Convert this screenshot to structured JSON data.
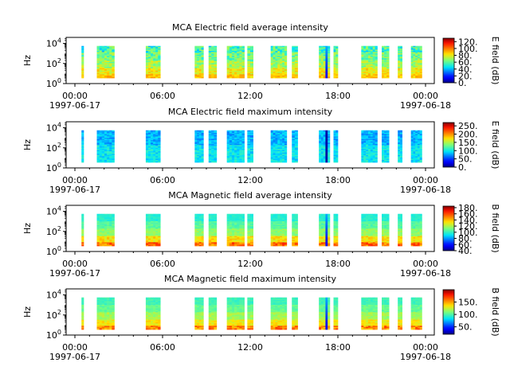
{
  "chart_data": [
    {
      "type": "heatmap",
      "title": "MCA  Electric field average intensity",
      "ylabel": "Hz",
      "colorbar_label": "E field (dB)",
      "colorbar_ticks": [
        "120.",
        "100.",
        "80.",
        "60.",
        "40.",
        "20.",
        "0."
      ],
      "colorbar_range": [
        0,
        130
      ],
      "y_ticks": [
        {
          "base": "10",
          "exp": "0"
        },
        {
          "base": "10",
          "exp": "2"
        },
        {
          "base": "10",
          "exp": "4"
        }
      ],
      "y_range_log10": [
        0,
        4.6
      ],
      "profile": "e_avg"
    },
    {
      "type": "heatmap",
      "title": "MCA  Electric field maximum intensity",
      "ylabel": "Hz",
      "colorbar_label": "E field (dB)",
      "colorbar_ticks": [
        "250.",
        "200.",
        "150.",
        "100.",
        "50.",
        "0."
      ],
      "colorbar_range": [
        0,
        270
      ],
      "y_ticks": [
        {
          "base": "10",
          "exp": "0"
        },
        {
          "base": "10",
          "exp": "2"
        },
        {
          "base": "10",
          "exp": "4"
        }
      ],
      "y_range_log10": [
        0,
        4.6
      ],
      "profile": "e_max"
    },
    {
      "type": "heatmap",
      "title": "MCA  Magnetic field average intensity",
      "ylabel": "Hz",
      "colorbar_label": "B field (dB)",
      "colorbar_ticks": [
        "180.",
        "160.",
        "140.",
        "120.",
        "100.",
        "80.",
        "60.",
        "40."
      ],
      "colorbar_range": [
        40,
        185
      ],
      "y_ticks": [
        {
          "base": "10",
          "exp": "0"
        },
        {
          "base": "10",
          "exp": "2"
        },
        {
          "base": "10",
          "exp": "4"
        }
      ],
      "y_range_log10": [
        0,
        4.6
      ],
      "profile": "b_avg"
    },
    {
      "type": "heatmap",
      "title": "MCA  Magnetic field maximum intensity",
      "ylabel": "Hz",
      "colorbar_label": "B field (dB)",
      "colorbar_ticks": [
        "150.",
        "100.",
        "50."
      ],
      "colorbar_range": [
        20,
        200
      ],
      "y_ticks": [
        {
          "base": "10",
          "exp": "0"
        },
        {
          "base": "10",
          "exp": "2"
        },
        {
          "base": "10",
          "exp": "4"
        }
      ],
      "y_range_log10": [
        0,
        4.6
      ],
      "profile": "b_max"
    }
  ],
  "x_axis": {
    "range_hours": [
      -0.6,
      24.6
    ],
    "ticks": [
      {
        "hour": 0,
        "time": "00:00",
        "date": "1997-06-17"
      },
      {
        "hour": 6,
        "time": "06:00",
        "date": ""
      },
      {
        "hour": 12,
        "time": "12:00",
        "date": ""
      },
      {
        "hour": 18,
        "time": "18:00",
        "date": ""
      },
      {
        "hour": 24,
        "time": "00:00",
        "date": "1997-06-18"
      }
    ],
    "minor_tick_interval_hours": 1
  },
  "data_segments_hours": [
    [
      0.45,
      0.6
    ],
    [
      1.5,
      2.7
    ],
    [
      4.85,
      5.85
    ],
    [
      8.2,
      8.8
    ],
    [
      9.15,
      9.7
    ],
    [
      10.4,
      11.6
    ],
    [
      11.8,
      12.2
    ],
    [
      13.4,
      14.5
    ],
    [
      14.85,
      15.25
    ],
    [
      16.7,
      17.45
    ],
    [
      17.7,
      18.0
    ],
    [
      19.6,
      20.7
    ],
    [
      21.0,
      21.5
    ],
    [
      22.1,
      22.4
    ],
    [
      23.0,
      23.75
    ]
  ],
  "colormap": "jet",
  "colors": {
    "background": "#ffffff",
    "axis": "#000000",
    "colormap_stops": [
      "#00007f",
      "#0000ff",
      "#007fff",
      "#00ffff",
      "#7fff7f",
      "#ffff00",
      "#ff7f00",
      "#ff0000",
      "#7f0000"
    ]
  }
}
